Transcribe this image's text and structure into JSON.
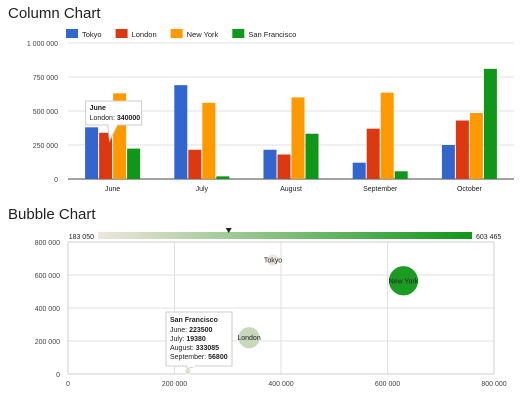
{
  "chart_data": [
    {
      "type": "bar",
      "title": "Column Chart",
      "categories": [
        "June",
        "July",
        "August",
        "September",
        "October"
      ],
      "series": [
        {
          "name": "Tokyo",
          "values": [
            380000,
            690000,
            215000,
            120000,
            250000
          ]
        },
        {
          "name": "London",
          "values": [
            340000,
            215000,
            180000,
            370000,
            430000
          ]
        },
        {
          "name": "New York",
          "values": [
            630000,
            560000,
            600000,
            635000,
            485000
          ]
        },
        {
          "name": "San Francisco",
          "values": [
            223500,
            19380,
            333085,
            56800,
            810000
          ]
        }
      ],
      "ylim": [
        0,
        1000000
      ],
      "yticks": [
        0,
        250000,
        500000,
        750000,
        1000000
      ],
      "ytick_labels": [
        "0",
        "250 000",
        "500 000",
        "750 000",
        "1 000 000"
      ],
      "colors": [
        "#3366cc",
        "#dc3912",
        "#ff9900",
        "#109618"
      ],
      "legend": "top-left",
      "grid": true,
      "tooltip": {
        "category": "June",
        "series": "London",
        "label": "London: ",
        "value": "340000"
      }
    },
    {
      "type": "scatter",
      "title": "Bubble Chart",
      "points": [
        {
          "label": "Tokyo",
          "x": 385000,
          "y": 690000,
          "color_value": 183050
        },
        {
          "label": "London",
          "x": 340000,
          "y": 220000,
          "color_value": 260000
        },
        {
          "label": "New York",
          "x": 630000,
          "y": 565000,
          "color_value": 603465
        },
        {
          "label": "San Francisco",
          "x": 225000,
          "y": 15000,
          "color_value": 215000
        }
      ],
      "xlim": [
        0,
        800000
      ],
      "ylim": [
        0,
        800000
      ],
      "xticks": [
        0,
        200000,
        400000,
        600000,
        800000
      ],
      "xtick_labels": [
        "0",
        "200 000",
        "400 000",
        "600 000",
        "800 000"
      ],
      "yticks": [
        0,
        200000,
        400000,
        600000,
        800000
      ],
      "ytick_labels": [
        "0",
        "200 000",
        "400 000",
        "600 000",
        "800 000"
      ],
      "colorbar": {
        "min_label": "183 050",
        "max_label": "603 465",
        "min": 183050,
        "max": 603465,
        "marker_value": 330000,
        "from_color": "#efe6dc",
        "to_color": "#109618"
      },
      "grid": true,
      "tooltip": {
        "point": "San Francisco",
        "title": "San Francisco",
        "rows": [
          {
            "label": "June: ",
            "value": "223500"
          },
          {
            "label": "July: ",
            "value": "19380"
          },
          {
            "label": "August: ",
            "value": "333085"
          },
          {
            "label": "September: ",
            "value": "56800"
          }
        ]
      }
    }
  ]
}
